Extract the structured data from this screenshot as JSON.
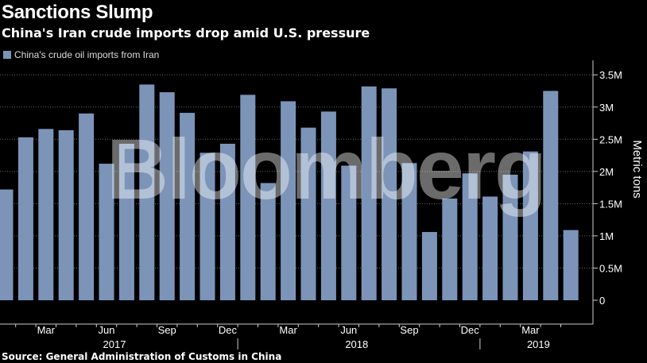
{
  "title": "Sanctions Slump",
  "subtitle": "China's Iran crude imports drop amid U.S. pressure",
  "source": "Source: General Administration of Customs in China",
  "watermark": "Bloomberg",
  "colors": {
    "bar": "#7d94b9",
    "background": "#000000",
    "axis": "#cccccc",
    "grid": "#666666"
  },
  "chart_data": {
    "type": "bar",
    "title": "Sanctions Slump",
    "subtitle": "China's Iran crude imports drop amid U.S. pressure",
    "ylabel": "Metric tons",
    "ylim": [
      0,
      3700000
    ],
    "yticks": [
      0,
      500000,
      1000000,
      1500000,
      2000000,
      2500000,
      3000000,
      3500000
    ],
    "ytick_labels": [
      "0",
      "0.5M",
      "1M",
      "1.5M",
      "2M",
      "2.5M",
      "3M",
      "3.5M"
    ],
    "grid": true,
    "legend_position": "top-left",
    "categories": [
      "2017-01",
      "2017-02",
      "2017-03",
      "2017-04",
      "2017-05",
      "2017-06",
      "2017-07",
      "2017-08",
      "2017-09",
      "2017-10",
      "2017-11",
      "2017-12",
      "2018-01",
      "2018-02",
      "2018-03",
      "2018-04",
      "2018-05",
      "2018-06",
      "2018-07",
      "2018-08",
      "2018-09",
      "2018-10",
      "2018-11",
      "2018-12",
      "2019-01",
      "2019-02",
      "2019-03",
      "2019-04",
      "2019-05"
    ],
    "series": [
      {
        "name": "China's crude oil imports from Iran",
        "values": [
          1720000,
          2530000,
          2660000,
          2640000,
          2900000,
          2120000,
          2430000,
          3350000,
          3230000,
          2910000,
          2290000,
          2430000,
          3190000,
          1820000,
          3090000,
          2680000,
          2930000,
          2090000,
          3320000,
          3290000,
          2130000,
          1060000,
          1580000,
          1970000,
          1610000,
          1950000,
          2310000,
          3250000,
          1090000
        ]
      }
    ],
    "x_tick_labels": [
      "Mar",
      "Jun",
      "Sep",
      "Dec",
      "Mar",
      "Jun",
      "Sep",
      "Dec",
      "Mar"
    ],
    "x_tick_months": [
      "2017-03",
      "2017-06",
      "2017-09",
      "2017-12",
      "2018-03",
      "2018-06",
      "2018-09",
      "2018-12",
      "2019-03"
    ],
    "year_labels": [
      "2017",
      "2018",
      "2019"
    ],
    "year_label_months": [
      "2017-06",
      "2018-06",
      "2019-03"
    ]
  }
}
